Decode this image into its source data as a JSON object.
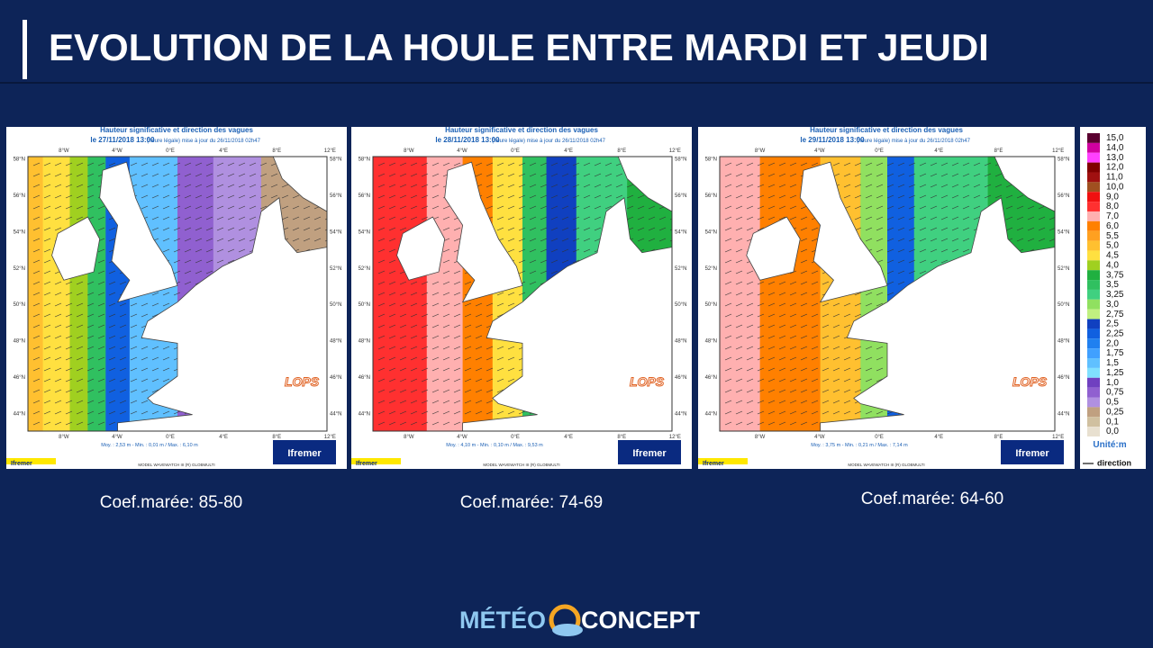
{
  "title": "EVOLUTION DE LA HOULE ENTRE MARDI ET JEUDI",
  "maps": [
    {
      "heading": "Hauteur significative et direction des vagues",
      "date": "le 27/11/2018 13:00",
      "date_note": "(heure légale) mise à jour du 26/11/2018 02h47",
      "stats": "Moy. : 2,53 m  -  Min. : 0,01 m / Max. : 6,10 m",
      "caption": "Coef.marée: 85-80"
    },
    {
      "heading": "Hauteur significative et direction des vagues",
      "date": "le 28/11/2018 13:00",
      "date_note": "(heure légale) mise à jour du 26/11/2018 02h47",
      "stats": "Moy. : 4,10 m  -  Min. : 0,10 m / Max. : 9,53 m",
      "caption": "Coef.marée: 74-69"
    },
    {
      "heading": "Hauteur significative et direction des vagues",
      "date": "le 29/11/2018 13:00",
      "date_note": "(heure légale) mise à jour du 26/11/2018 02h47",
      "stats": "Moy. : 3,75 m  -  Min. : 0,21 m / Max. : 7,14 m",
      "caption": "Coef.marée: 64-60"
    }
  ],
  "map_labels": {
    "lat": [
      "58°N",
      "56°N",
      "54°N",
      "52°N",
      "50°N",
      "48°N",
      "46°N",
      "44°N"
    ],
    "lon": [
      "8°W",
      "4°W",
      "0°E",
      "4°E",
      "8°E",
      "12°E"
    ],
    "lops": "LOPS",
    "ifremer": "Ifremer",
    "model": "MODEL WAVEWATCH III (R) GLOBMULTI"
  },
  "legend": {
    "levels": [
      "15,0",
      "14,0",
      "13,0",
      "12,0",
      "11,0",
      "10,0",
      "9,0",
      "8,0",
      "7,0",
      "6,0",
      "5,5",
      "5,0",
      "4,5",
      "4,0",
      "3,75",
      "3,5",
      "3,25",
      "3,0",
      "2,75",
      "2,5",
      "2,25",
      "2,0",
      "1,75",
      "1,5",
      "1,25",
      "1,0",
      "0,75",
      "0,5",
      "0,25",
      "0,1",
      "0,0"
    ],
    "colors": [
      "#5a0030",
      "#d000a0",
      "#ff40ff",
      "#800000",
      "#a01010",
      "#a05020",
      "#f01010",
      "#ff3030",
      "#ffb0b0",
      "#ff8000",
      "#ffa020",
      "#ffc030",
      "#ffe040",
      "#a0d020",
      "#20b040",
      "#30c060",
      "#40d080",
      "#90e060",
      "#c0f080",
      "#1040c0",
      "#1060e0",
      "#2080f0",
      "#40a0ff",
      "#60c0ff",
      "#80e0ff",
      "#7040c0",
      "#9060d0",
      "#b090e0",
      "#c0a080",
      "#d0c0a0",
      "#e8e0d0"
    ],
    "unit": "Unité:m",
    "direction": "direction"
  },
  "logo": {
    "part1": "MÉTÉO",
    "part2": "CONCEPT"
  }
}
